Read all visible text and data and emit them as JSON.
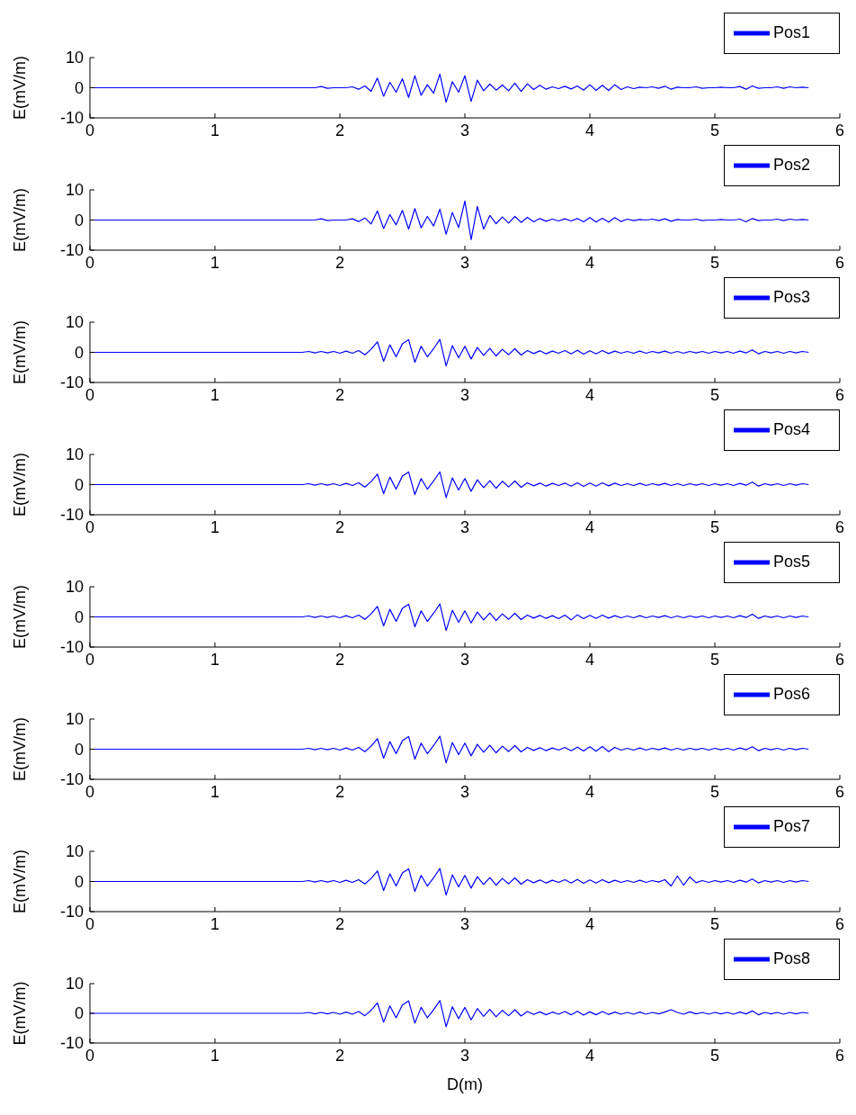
{
  "chart_data": [
    {
      "type": "line",
      "ylabel": "E(mV/m)",
      "xlim": [
        0,
        6
      ],
      "xticks": [
        0,
        1,
        2,
        3,
        4,
        5,
        6
      ],
      "ylim": [
        -10,
        10
      ],
      "yticks": [
        -10,
        0,
        10
      ],
      "legend": "top right",
      "marker": "none",
      "x": [
        0,
        1.7,
        1.75,
        1.8,
        1.85,
        1.9,
        1.95,
        2,
        2.05,
        2.1,
        2.15,
        2.2,
        2.25,
        2.3,
        2.35,
        2.4,
        2.45,
        2.5,
        2.55,
        2.6,
        2.65,
        2.7,
        2.75,
        2.8,
        2.85,
        2.9,
        2.95,
        3,
        3.05,
        3.1,
        3.15,
        3.2,
        3.25,
        3.3,
        3.35,
        3.4,
        3.45,
        3.5,
        3.55,
        3.6,
        3.65,
        3.7,
        3.75,
        3.8,
        3.85,
        3.9,
        3.95,
        4,
        4.05,
        4.1,
        4.15,
        4.2,
        4.25,
        4.3,
        4.35,
        4.4,
        4.45,
        4.5,
        4.55,
        4.6,
        4.65,
        4.7,
        4.75,
        4.8,
        4.85,
        4.9,
        4.95,
        5,
        5.05,
        5.1,
        5.15,
        5.2,
        5.25,
        5.3,
        5.35,
        5.4,
        5.45,
        5.5,
        5.55,
        5.6,
        5.65,
        5.7,
        5.75
      ],
      "series": [
        {
          "name": "Pos1",
          "color": "#0000ff",
          "values": [
            0,
            0,
            0,
            0,
            0.4,
            -0.2,
            0,
            0,
            0,
            0.3,
            -0.5,
            0.6,
            -1.2,
            3.2,
            -2.8,
            1.8,
            -1.5,
            3,
            -3.2,
            4,
            -2.5,
            1,
            -1.8,
            4.5,
            -4.8,
            2,
            -1.5,
            4,
            -4.5,
            2.5,
            -1,
            1.2,
            -0.8,
            0.9,
            -1,
            1.5,
            -1.2,
            1.3,
            -0.6,
            0.8,
            -0.5,
            0.3,
            -0.3,
            0.5,
            -0.4,
            0.6,
            -0.8,
            1,
            -0.9,
            0.8,
            -0.9,
            1,
            -0.6,
            0.3,
            -0.3,
            0.2,
            0,
            0.3,
            -0.2,
            0.5,
            -0.5,
            0.2,
            0,
            0,
            0.3,
            -0.2,
            0,
            0,
            0.2,
            0,
            0,
            0.4,
            -0.5,
            0.6,
            -0.2,
            0,
            0,
            0.3,
            -0.2,
            0.3,
            0,
            0.2,
            0
          ]
        }
      ]
    },
    {
      "type": "line",
      "ylabel": "E(mV/m)",
      "xlim": [
        0,
        6
      ],
      "xticks": [
        0,
        1,
        2,
        3,
        4,
        5,
        6
      ],
      "ylim": [
        -10,
        10
      ],
      "yticks": [
        -10,
        0,
        10
      ],
      "legend": "top right",
      "marker": "none",
      "x": [
        0,
        1.7,
        1.75,
        1.8,
        1.85,
        1.9,
        1.95,
        2,
        2.05,
        2.1,
        2.15,
        2.2,
        2.25,
        2.3,
        2.35,
        2.4,
        2.45,
        2.5,
        2.55,
        2.6,
        2.65,
        2.7,
        2.75,
        2.8,
        2.85,
        2.9,
        2.95,
        3,
        3.05,
        3.1,
        3.15,
        3.2,
        3.25,
        3.3,
        3.35,
        3.4,
        3.45,
        3.5,
        3.55,
        3.6,
        3.65,
        3.7,
        3.75,
        3.8,
        3.85,
        3.9,
        3.95,
        4,
        4.05,
        4.1,
        4.15,
        4.2,
        4.25,
        4.3,
        4.35,
        4.4,
        4.45,
        4.5,
        4.55,
        4.6,
        4.65,
        4.7,
        4.75,
        4.8,
        4.85,
        4.9,
        4.95,
        5,
        5.05,
        5.1,
        5.15,
        5.2,
        5.25,
        5.3,
        5.35,
        5.4,
        5.45,
        5.5,
        5.55,
        5.6,
        5.65,
        5.7,
        5.75
      ],
      "series": [
        {
          "name": "Pos2",
          "color": "#0000ff",
          "values": [
            0,
            0,
            0,
            0,
            0.4,
            -0.2,
            0,
            0,
            0,
            0.4,
            -0.5,
            0.7,
            -1.3,
            3,
            -2.8,
            1.8,
            -1.6,
            3.2,
            -3,
            3.8,
            -2.6,
            1.2,
            -2,
            3.6,
            -4.7,
            2.5,
            -2.5,
            6.3,
            -6.5,
            4.5,
            -3,
            1.5,
            -1.2,
            1,
            -1,
            1.2,
            -0.8,
            0.9,
            -0.6,
            0.5,
            -0.4,
            0.3,
            -0.3,
            0.4,
            -0.3,
            0.5,
            -0.6,
            0.8,
            -0.7,
            0.6,
            -0.7,
            0.8,
            -0.5,
            0.3,
            -0.2,
            0.2,
            0,
            0.3,
            -0.2,
            0.4,
            -0.4,
            0.2,
            0,
            0,
            0.3,
            -0.2,
            0,
            0,
            0.2,
            0,
            0,
            0.3,
            -0.6,
            0.5,
            -0.2,
            0,
            0,
            0.3,
            -0.2,
            0.3,
            0,
            0.2,
            0
          ]
        }
      ]
    },
    {
      "type": "line",
      "ylabel": "E(mV/m)",
      "xlim": [
        0,
        6
      ],
      "xticks": [
        0,
        1,
        2,
        3,
        4,
        5,
        6
      ],
      "ylim": [
        -10,
        10
      ],
      "yticks": [
        -10,
        0,
        10
      ],
      "legend": "top right",
      "marker": "none",
      "x": [
        0,
        1.7,
        1.75,
        1.8,
        1.85,
        1.9,
        1.95,
        2,
        2.05,
        2.1,
        2.15,
        2.2,
        2.25,
        2.3,
        2.35,
        2.4,
        2.45,
        2.5,
        2.55,
        2.6,
        2.65,
        2.7,
        2.75,
        2.8,
        2.85,
        2.9,
        2.95,
        3,
        3.05,
        3.1,
        3.15,
        3.2,
        3.25,
        3.3,
        3.35,
        3.4,
        3.45,
        3.5,
        3.55,
        3.6,
        3.65,
        3.7,
        3.75,
        3.8,
        3.85,
        3.9,
        3.95,
        4,
        4.05,
        4.1,
        4.15,
        4.2,
        4.25,
        4.3,
        4.35,
        4.4,
        4.45,
        4.5,
        4.55,
        4.6,
        4.65,
        4.7,
        4.75,
        4.8,
        4.85,
        4.9,
        4.95,
        5,
        5.05,
        5.1,
        5.15,
        5.2,
        5.25,
        5.3,
        5.35,
        5.4,
        5.45,
        5.5,
        5.55,
        5.6,
        5.65,
        5.7,
        5.75
      ],
      "series": [
        {
          "name": "Pos3",
          "color": "#0000ff",
          "values": [
            0,
            0,
            0.3,
            -0.2,
            0.3,
            -0.2,
            0.3,
            -0.3,
            0.4,
            -0.3,
            0.6,
            -0.8,
            1,
            3.5,
            -3,
            2.5,
            -1.5,
            2.8,
            4.2,
            -3.3,
            2,
            -1.5,
            1.2,
            4.3,
            -4.5,
            2.2,
            -1.8,
            2,
            -2.2,
            1.6,
            -1,
            1.3,
            -1.2,
            1,
            -0.8,
            1.2,
            -0.9,
            0.6,
            -0.4,
            0.5,
            -0.5,
            0.4,
            -0.3,
            0.6,
            -0.5,
            0.7,
            -0.6,
            0.5,
            -0.5,
            0.6,
            -0.4,
            0.4,
            -0.3,
            0.3,
            -0.3,
            0.4,
            -0.3,
            0.3,
            -0.2,
            0.4,
            -0.3,
            0.3,
            -0.3,
            0.3,
            -0.2,
            0.3,
            -0.3,
            0.3,
            -0.2,
            0.3,
            -0.3,
            0.4,
            -0.2,
            0.8,
            -0.5,
            0.3,
            -0.2,
            0.3,
            -0.3,
            0.3,
            -0.2,
            0.3,
            0
          ]
        }
      ]
    },
    {
      "type": "line",
      "ylabel": "E(mV/m)",
      "xlim": [
        0,
        6
      ],
      "xticks": [
        0,
        1,
        2,
        3,
        4,
        5,
        6
      ],
      "ylim": [
        -10,
        10
      ],
      "yticks": [
        -10,
        0,
        10
      ],
      "legend": "top right",
      "marker": "none",
      "x": [
        0,
        1.7,
        1.75,
        1.8,
        1.85,
        1.9,
        1.95,
        2,
        2.05,
        2.1,
        2.15,
        2.2,
        2.25,
        2.3,
        2.35,
        2.4,
        2.45,
        2.5,
        2.55,
        2.6,
        2.65,
        2.7,
        2.75,
        2.8,
        2.85,
        2.9,
        2.95,
        3,
        3.05,
        3.1,
        3.15,
        3.2,
        3.25,
        3.3,
        3.35,
        3.4,
        3.45,
        3.5,
        3.55,
        3.6,
        3.65,
        3.7,
        3.75,
        3.8,
        3.85,
        3.9,
        3.95,
        4,
        4.05,
        4.1,
        4.15,
        4.2,
        4.25,
        4.3,
        4.35,
        4.4,
        4.45,
        4.5,
        4.55,
        4.6,
        4.65,
        4.7,
        4.75,
        4.8,
        4.85,
        4.9,
        4.95,
        5,
        5.05,
        5.1,
        5.15,
        5.2,
        5.25,
        5.3,
        5.35,
        5.4,
        5.45,
        5.5,
        5.55,
        5.6,
        5.65,
        5.7,
        5.75
      ],
      "series": [
        {
          "name": "Pos4",
          "color": "#0000ff",
          "values": [
            0,
            0,
            0.3,
            -0.2,
            0.3,
            -0.2,
            0.3,
            -0.3,
            0.4,
            -0.3,
            0.6,
            -0.8,
            1,
            3.5,
            -3,
            2.5,
            -1.5,
            2.8,
            4.2,
            -3.3,
            2,
            -1.5,
            1.2,
            4.2,
            -4.3,
            2.2,
            -1.8,
            2,
            -2.2,
            1.6,
            -1,
            1.3,
            -1.2,
            1.1,
            -0.8,
            1.2,
            -0.9,
            0.6,
            -0.4,
            0.5,
            -0.5,
            0.4,
            -0.3,
            0.5,
            -0.5,
            0.6,
            -0.6,
            0.5,
            -0.5,
            0.6,
            -0.4,
            0.5,
            -0.3,
            0.3,
            -0.3,
            0.4,
            -0.3,
            0.3,
            -0.2,
            0.4,
            -0.3,
            0.3,
            -0.3,
            0.3,
            -0.2,
            0.3,
            -0.3,
            0.3,
            -0.2,
            0.3,
            -0.3,
            0.4,
            -0.2,
            0.8,
            -0.5,
            0.3,
            -0.2,
            0.3,
            -0.3,
            0.3,
            -0.2,
            0.3,
            0
          ]
        }
      ]
    },
    {
      "type": "line",
      "ylabel": "E(mV/m)",
      "xlim": [
        0,
        6
      ],
      "xticks": [
        0,
        1,
        2,
        3,
        4,
        5,
        6
      ],
      "ylim": [
        -10,
        10
      ],
      "yticks": [
        -10,
        0,
        10
      ],
      "legend": "top right",
      "marker": "none",
      "x": [
        0,
        1.7,
        1.75,
        1.8,
        1.85,
        1.9,
        1.95,
        2,
        2.05,
        2.1,
        2.15,
        2.2,
        2.25,
        2.3,
        2.35,
        2.4,
        2.45,
        2.5,
        2.55,
        2.6,
        2.65,
        2.7,
        2.75,
        2.8,
        2.85,
        2.9,
        2.95,
        3,
        3.05,
        3.1,
        3.15,
        3.2,
        3.25,
        3.3,
        3.35,
        3.4,
        3.45,
        3.5,
        3.55,
        3.6,
        3.65,
        3.7,
        3.75,
        3.8,
        3.85,
        3.9,
        3.95,
        4,
        4.05,
        4.1,
        4.15,
        4.2,
        4.25,
        4.3,
        4.35,
        4.4,
        4.45,
        4.5,
        4.55,
        4.6,
        4.65,
        4.7,
        4.75,
        4.8,
        4.85,
        4.9,
        4.95,
        5,
        5.05,
        5.1,
        5.15,
        5.2,
        5.25,
        5.3,
        5.35,
        5.4,
        5.45,
        5.5,
        5.55,
        5.6,
        5.65,
        5.7,
        5.75
      ],
      "series": [
        {
          "name": "Pos5",
          "color": "#0000ff",
          "values": [
            0,
            0,
            0.3,
            -0.2,
            0.3,
            -0.2,
            0.3,
            -0.3,
            0.4,
            -0.3,
            0.6,
            -0.8,
            1,
            3.5,
            -3,
            2.5,
            -1.5,
            2.8,
            4.2,
            -3.3,
            2,
            -1.5,
            1.2,
            4.3,
            -4.5,
            2.2,
            -1.8,
            2,
            -2,
            1.6,
            -1,
            1.3,
            -1.2,
            1,
            -0.8,
            1.2,
            -0.9,
            0.6,
            -0.4,
            0.5,
            -0.5,
            0.4,
            -0.6,
            0.6,
            -1,
            0.7,
            -0.6,
            0.5,
            -0.5,
            0.6,
            -0.4,
            0.4,
            -0.3,
            0.3,
            -0.3,
            0.4,
            -0.3,
            0.3,
            -0.2,
            0.4,
            -0.3,
            0.3,
            -0.3,
            0.3,
            -0.2,
            0.3,
            -0.3,
            0.3,
            -0.2,
            0.3,
            -0.3,
            0.4,
            -0.2,
            0.9,
            -0.5,
            0.3,
            -0.2,
            0.3,
            -0.3,
            0.3,
            -0.2,
            0.3,
            0
          ]
        }
      ]
    },
    {
      "type": "line",
      "ylabel": "E(mV/m)",
      "xlim": [
        0,
        6
      ],
      "xticks": [
        0,
        1,
        2,
        3,
        4,
        5,
        6
      ],
      "ylim": [
        -10,
        10
      ],
      "yticks": [
        -10,
        0,
        10
      ],
      "legend": "top right",
      "marker": "none",
      "x": [
        0,
        1.7,
        1.75,
        1.8,
        1.85,
        1.9,
        1.95,
        2,
        2.05,
        2.1,
        2.15,
        2.2,
        2.25,
        2.3,
        2.35,
        2.4,
        2.45,
        2.5,
        2.55,
        2.6,
        2.65,
        2.7,
        2.75,
        2.8,
        2.85,
        2.9,
        2.95,
        3,
        3.05,
        3.1,
        3.15,
        3.2,
        3.25,
        3.3,
        3.35,
        3.4,
        3.45,
        3.5,
        3.55,
        3.6,
        3.65,
        3.7,
        3.75,
        3.8,
        3.85,
        3.9,
        3.95,
        4,
        4.05,
        4.1,
        4.15,
        4.2,
        4.25,
        4.3,
        4.35,
        4.4,
        4.45,
        4.5,
        4.55,
        4.6,
        4.65,
        4.7,
        4.75,
        4.8,
        4.85,
        4.9,
        4.95,
        5,
        5.05,
        5.1,
        5.15,
        5.2,
        5.25,
        5.3,
        5.35,
        5.4,
        5.45,
        5.5,
        5.55,
        5.6,
        5.65,
        5.7,
        5.75
      ],
      "series": [
        {
          "name": "Pos6",
          "color": "#0000ff",
          "values": [
            0,
            0,
            0.3,
            -0.2,
            0.3,
            -0.2,
            0.3,
            -0.3,
            0.4,
            -0.3,
            0.6,
            -0.8,
            1,
            3.5,
            -3,
            2.5,
            -1.5,
            2.8,
            4.2,
            -3.3,
            2,
            -1.5,
            1.2,
            4.3,
            -4.5,
            2.2,
            -1.8,
            2,
            -2.2,
            1.6,
            -1,
            1.3,
            -1.2,
            1,
            -0.8,
            1.2,
            -0.9,
            0.6,
            -0.4,
            0.5,
            -0.5,
            0.4,
            -0.3,
            0.6,
            -0.5,
            0.7,
            -0.6,
            0.8,
            -0.7,
            0.9,
            -0.8,
            0.6,
            -0.3,
            0.3,
            -0.3,
            0.4,
            -0.3,
            0.3,
            -0.2,
            0.4,
            -0.3,
            0.3,
            -0.3,
            0.3,
            -0.2,
            0.3,
            -0.3,
            0.3,
            -0.2,
            0.3,
            -0.3,
            0.4,
            -0.2,
            0.8,
            -0.5,
            0.3,
            -0.2,
            0.3,
            -0.3,
            0.3,
            -0.2,
            0.3,
            0
          ]
        }
      ]
    },
    {
      "type": "line",
      "ylabel": "E(mV/m)",
      "xlim": [
        0,
        6
      ],
      "xticks": [
        0,
        1,
        2,
        3,
        4,
        5,
        6
      ],
      "ylim": [
        -10,
        10
      ],
      "yticks": [
        -10,
        0,
        10
      ],
      "legend": "top right",
      "marker": "none",
      "x": [
        0,
        1.7,
        1.75,
        1.8,
        1.85,
        1.9,
        1.95,
        2,
        2.05,
        2.1,
        2.15,
        2.2,
        2.25,
        2.3,
        2.35,
        2.4,
        2.45,
        2.5,
        2.55,
        2.6,
        2.65,
        2.7,
        2.75,
        2.8,
        2.85,
        2.9,
        2.95,
        3,
        3.05,
        3.1,
        3.15,
        3.2,
        3.25,
        3.3,
        3.35,
        3.4,
        3.45,
        3.5,
        3.55,
        3.6,
        3.65,
        3.7,
        3.75,
        3.8,
        3.85,
        3.9,
        3.95,
        4,
        4.05,
        4.1,
        4.15,
        4.2,
        4.25,
        4.3,
        4.35,
        4.4,
        4.45,
        4.5,
        4.55,
        4.6,
        4.65,
        4.7,
        4.75,
        4.8,
        4.85,
        4.9,
        4.95,
        5,
        5.05,
        5.1,
        5.15,
        5.2,
        5.25,
        5.3,
        5.35,
        5.4,
        5.45,
        5.5,
        5.55,
        5.6,
        5.65,
        5.7,
        5.75
      ],
      "series": [
        {
          "name": "Pos7",
          "color": "#0000ff",
          "values": [
            0,
            0,
            0.3,
            -0.2,
            0.3,
            -0.2,
            0.3,
            -0.3,
            0.4,
            -0.3,
            0.6,
            -0.8,
            1,
            3.5,
            -3,
            2.5,
            -1.5,
            2.8,
            4.2,
            -3.3,
            2,
            -1.5,
            1.2,
            4.3,
            -4.5,
            2.2,
            -1.8,
            2,
            -2.2,
            1.6,
            -1,
            1.3,
            -1.2,
            1,
            -0.8,
            1.2,
            -0.9,
            0.6,
            -0.4,
            0.5,
            -0.5,
            0.4,
            -0.3,
            0.6,
            -0.5,
            0.7,
            -0.6,
            0.5,
            -0.5,
            0.6,
            -0.4,
            0.4,
            -0.3,
            0.3,
            -0.3,
            0.4,
            -0.3,
            0.3,
            -0.2,
            0.6,
            -1.5,
            1.8,
            -1.2,
            1.5,
            -0.4,
            0.3,
            -0.3,
            0.3,
            -0.2,
            0.3,
            -0.3,
            0.4,
            -0.2,
            0.8,
            -0.5,
            0.3,
            -0.2,
            0.3,
            -0.3,
            0.3,
            -0.2,
            0.3,
            0
          ]
        }
      ]
    },
    {
      "type": "line",
      "ylabel": "E(mV/m)",
      "xlabel": "D(m)",
      "xlim": [
        0,
        6
      ],
      "xticks": [
        0,
        1,
        2,
        3,
        4,
        5,
        6
      ],
      "ylim": [
        -10,
        10
      ],
      "yticks": [
        -10,
        0,
        10
      ],
      "legend": "top right",
      "marker": "none",
      "x": [
        0,
        1.7,
        1.75,
        1.8,
        1.85,
        1.9,
        1.95,
        2,
        2.05,
        2.1,
        2.15,
        2.2,
        2.25,
        2.3,
        2.35,
        2.4,
        2.45,
        2.5,
        2.55,
        2.6,
        2.65,
        2.7,
        2.75,
        2.8,
        2.85,
        2.9,
        2.95,
        3,
        3.05,
        3.1,
        3.15,
        3.2,
        3.25,
        3.3,
        3.35,
        3.4,
        3.45,
        3.5,
        3.55,
        3.6,
        3.65,
        3.7,
        3.75,
        3.8,
        3.85,
        3.9,
        3.95,
        4,
        4.05,
        4.1,
        4.15,
        4.2,
        4.25,
        4.3,
        4.35,
        4.4,
        4.45,
        4.5,
        4.55,
        4.6,
        4.65,
        4.7,
        4.75,
        4.8,
        4.85,
        4.9,
        4.95,
        5,
        5.05,
        5.1,
        5.15,
        5.2,
        5.25,
        5.3,
        5.35,
        5.4,
        5.45,
        5.5,
        5.55,
        5.6,
        5.65,
        5.7,
        5.75
      ],
      "series": [
        {
          "name": "Pos8",
          "color": "#0000ff",
          "values": [
            0,
            0,
            0.3,
            -0.2,
            0.3,
            -0.2,
            0.3,
            -0.3,
            0.4,
            -0.3,
            0.6,
            -0.8,
            1,
            3.5,
            -3,
            2.5,
            -1.5,
            2.8,
            4.2,
            -3.3,
            2,
            -1.5,
            1.2,
            4.3,
            -4.5,
            2.2,
            -1.8,
            2,
            -2.2,
            1.6,
            -1,
            1.3,
            -1.2,
            1,
            -0.8,
            1.2,
            -0.9,
            0.6,
            -0.4,
            0.5,
            -0.5,
            0.4,
            -0.3,
            0.6,
            -0.5,
            0.7,
            -0.6,
            0.5,
            -0.5,
            0.6,
            -0.4,
            0.4,
            -0.3,
            0.3,
            -0.3,
            0.4,
            -0.3,
            0.3,
            -0.2,
            0.4,
            1.2,
            0.3,
            -0.3,
            0.5,
            -0.2,
            0.3,
            -0.3,
            0.3,
            -0.2,
            0.3,
            -0.3,
            0.4,
            -0.2,
            0.8,
            -0.5,
            0.3,
            -0.2,
            0.3,
            -0.3,
            0.3,
            -0.2,
            0.3,
            0
          ]
        }
      ]
    }
  ]
}
